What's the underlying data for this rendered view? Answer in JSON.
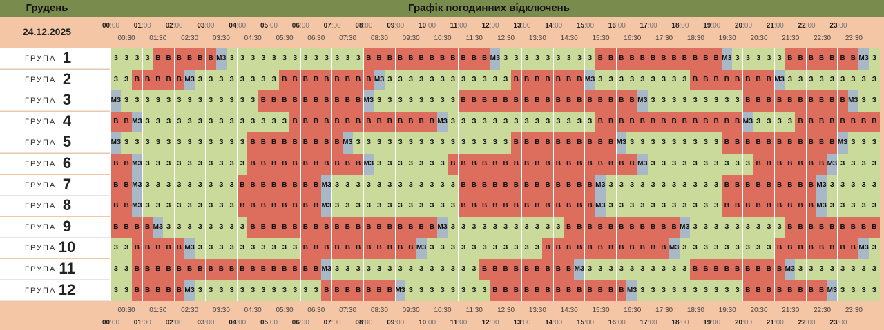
{
  "header": {
    "month": "Грудень",
    "title": "Графік погодинних відключень",
    "date": "24.12.2025"
  },
  "hours": [
    "00",
    "01",
    "02",
    "03",
    "04",
    "05",
    "06",
    "07",
    "08",
    "09",
    "10",
    "11",
    "12",
    "13",
    "14",
    "15",
    "16",
    "17",
    "18",
    "19",
    "20",
    "21",
    "22",
    "23"
  ],
  "minute_suffix": ":00",
  "half_labels": [
    "00:30",
    "01:30",
    "02:30",
    "03:30",
    "04:30",
    "05:30",
    "06:30",
    "07:30",
    "08:30",
    "09:30",
    "10:30",
    "11:30",
    "12:30",
    "13:30",
    "14:30",
    "15:30",
    "16:30",
    "17:30",
    "18:30",
    "19:30",
    "20:30",
    "21:30",
    "22:30",
    "23:30"
  ],
  "group_word": "ГРУПА",
  "cell_labels": {
    "z": "З",
    "v": "В",
    "m": "МЗ"
  },
  "colors": {
    "z": "#c9da9a",
    "v": "#dd6e5e",
    "m": "#a9b8c6",
    "topbar": "#7a8b4e",
    "bg": "#f4c6a6"
  },
  "groups": [
    {
      "num": "1",
      "cells": "zzzzvvvvvvmzzzzzzzzzzzzzvvvvvvvvvvvvmzzzzzzzzzvvvvvvvvvvvvmzzzzzvvvvvvvmzz"
    },
    {
      "num": "2",
      "cells": "zzvvvvvmzzzzzzzzvvvvvvvvvmzzzzzzzzzzzzvvvvvvvmzzzzzzzzzvvvvvvvvmzzzzzzzzzzz"
    },
    {
      "num": "3",
      "cells": "mzzzzzzzzzzzzzvvvvvvvvvvmzzzzzzzzvvvvvvvvvvvvvvvvvmzzzzzzzzzvvvvvvvvvvmzzzzz"
    },
    {
      "num": "4",
      "cells": "vvmzzzzzzzzzzzzzzvvvvvvvvvvvvvvmzzzzzzzzzzzzzzvvvvvvvvvvvvvvmzzzzvvvvvvvvmzz"
    },
    {
      "num": "5",
      "cells": "mzzzzzzzzzzzzvvvvvvvvvmzzzzzzzzzzzzzzzvvvvvvvvvvmzzzzzzzzzvvvvvvvvvvvmzzzzvm"
    },
    {
      "num": "6",
      "cells": "vvmzzzzzzzzzzvvvvvvvvvvvmzzzzzzzvvvvvvvvvvvvvvvvvvmzzzzzzzzzzvvvvvvvmzzzzzzz"
    },
    {
      "num": "7",
      "cells": "vvmzzzzzzzzzvvvvvvvvmzzzzzzzzzzzzvvvvvvvvvvvvvmzzzzzzzzzzzvvvvvvvvvmzzzzzzvv"
    },
    {
      "num": "8",
      "cells": "vvmzzzzzzzzzvvvvvvvvmzzzzzzzzzzzzvvvvvvvvvvvvvmzzzzzzzzzzzvvvvvvvvvmzzzzzzvv"
    },
    {
      "num": "9",
      "cells": "vvvvmzzzzzzzzvvvvvvvvvvvvvvvvvvmzzzzzzzzzzzvvvvvvvvvvvmzzzzzzzzzvvvvvvvvvmzz"
    },
    {
      "num": "10",
      "cells": "zzvvvvvmzzzzzzzzzzvvvvvvvvvvvmzzzzzzzzzzzvvvvvvvvvvvvmzzzzzzzzzvvvvvvvvmzzzz"
    },
    {
      "num": "11",
      "cells": "zzvvvvvvvvvvvvvvvvvvmzzzzzzzzzzzzzzvvvvvvvvvmzzzzzzzzzzvvvvvvvvvmzzzzzzzzzmv"
    },
    {
      "num": "12",
      "cells": "zzvvvvvmzzzzzzzzzzzzvvvvvvvmzzzzzzzzvvvvvvvvvvvvvmzzzzzzzzzzvvvvvvvvmzzzzzzz"
    }
  ]
}
